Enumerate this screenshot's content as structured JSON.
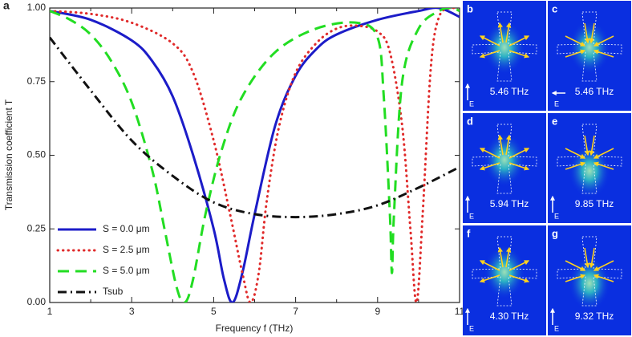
{
  "chart_data": {
    "type": "line",
    "panel_label": "a",
    "xlabel": "Frequency f (THz)",
    "ylabel": "Transmission coefficient T",
    "xlim": [
      1,
      11
    ],
    "ylim": [
      0,
      1
    ],
    "xticks": [
      1,
      3,
      5,
      7,
      9,
      11
    ],
    "xminor_ticks": [
      2,
      4,
      6,
      8,
      10
    ],
    "yticks": [
      {
        "value": 0,
        "label": "0.00"
      },
      0.25,
      {
        "value": 0.5,
        "label": "0.50"
      },
      0.75,
      {
        "value": 1,
        "label": "1.00"
      }
    ],
    "legend": "lower left",
    "series": [
      {
        "name": "S = 0.0 μm",
        "color": "#1c1cc8",
        "linestyle": "solid",
        "x": [
          1,
          2,
          3,
          3.5,
          4,
          4.5,
          5,
          5.25,
          5.46,
          5.7,
          6,
          6.5,
          7,
          7.5,
          8,
          9,
          10,
          10.5,
          11
        ],
        "values": [
          0.99,
          0.96,
          0.89,
          0.82,
          0.7,
          0.5,
          0.25,
          0.08,
          0,
          0.1,
          0.3,
          0.6,
          0.77,
          0.86,
          0.91,
          0.96,
          0.99,
          1,
          0.97
        ]
      },
      {
        "name": "S = 2.5 μm",
        "color": "#e02a2a",
        "linestyle": "dotted",
        "x": [
          1,
          2,
          3,
          4,
          4.5,
          5,
          5.4,
          5.7,
          5.9,
          6.1,
          6.3,
          6.6,
          7,
          7.5,
          8,
          8.5,
          9,
          9.3,
          9.6,
          9.8,
          9.95,
          10.1,
          10.3,
          10.5,
          10.8,
          11
        ],
        "values": [
          0.99,
          0.98,
          0.95,
          0.88,
          0.78,
          0.55,
          0.3,
          0.1,
          0,
          0.1,
          0.35,
          0.6,
          0.78,
          0.88,
          0.93,
          0.94,
          0.92,
          0.85,
          0.6,
          0.25,
          0,
          0.3,
          0.8,
          0.97,
          1,
          0.99
        ]
      },
      {
        "name": "S = 5.0 μm",
        "color": "#22dd22",
        "linestyle": "dashed",
        "x": [
          1,
          1.5,
          2,
          2.5,
          3,
          3.5,
          3.8,
          4.1,
          4.3,
          4.5,
          4.8,
          5.2,
          5.7,
          6.5,
          7.5,
          8.5,
          9,
          9.15,
          9.3,
          9.35,
          9.4,
          9.6,
          10,
          10.5,
          10.8,
          11
        ],
        "values": [
          0.99,
          0.96,
          0.91,
          0.82,
          0.68,
          0.45,
          0.25,
          0.05,
          0,
          0.08,
          0.3,
          0.52,
          0.7,
          0.85,
          0.93,
          0.95,
          0.9,
          0.7,
          0.3,
          0.1,
          0.3,
          0.75,
          0.93,
          0.99,
          1,
          0.99
        ]
      },
      {
        "name": "Tsub",
        "color": "#111111",
        "linestyle": "dashdot",
        "x": [
          1,
          2,
          3,
          4,
          5,
          6,
          7,
          8,
          9,
          10,
          11
        ],
        "values": [
          0.9,
          0.72,
          0.55,
          0.43,
          0.34,
          0.3,
          0.29,
          0.3,
          0.33,
          0.39,
          0.46
        ]
      }
    ]
  },
  "figure_panels": [
    {
      "label": "b",
      "frequency": "5.46 THz",
      "field_label": "E"
    },
    {
      "label": "c",
      "frequency": "5.46 THz",
      "field_label": "E"
    },
    {
      "label": "d",
      "frequency": "5.94 THz",
      "field_label": "E"
    },
    {
      "label": "e",
      "frequency": "9.85 THz",
      "field_label": "E"
    },
    {
      "label": "f",
      "frequency": "4.30 THz",
      "field_label": "E"
    },
    {
      "label": "g",
      "frequency": "9.32 THz",
      "field_label": "E"
    }
  ]
}
